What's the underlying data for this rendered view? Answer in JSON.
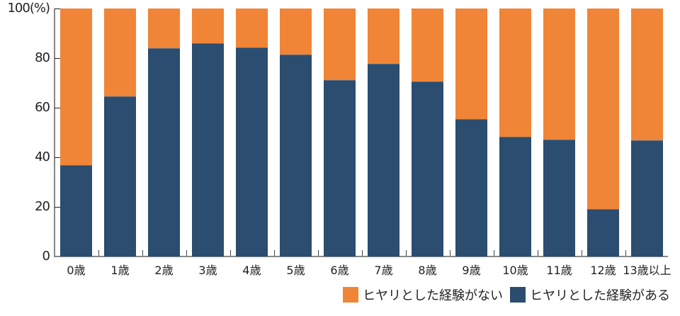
{
  "chart_data": {
    "type": "bar",
    "stacked": true,
    "percent": true,
    "title": "",
    "xlabel": "",
    "ylabel": "(%)",
    "ylim": [
      0,
      100
    ],
    "yticks": [
      0,
      20,
      40,
      60,
      80,
      100
    ],
    "ytick_labels": [
      "0",
      "20",
      "40",
      "60",
      "80",
      "100(%)"
    ],
    "grid": false,
    "legend_position": "bottom-right",
    "categories": [
      "0歳",
      "1歳",
      "2歳",
      "3歳",
      "4歳",
      "5歳",
      "6歳",
      "7歳",
      "8歳",
      "9歳",
      "10歳",
      "11歳",
      "12歳",
      "13歳以上"
    ],
    "series": [
      {
        "name": "ヒヤリとした経験がある",
        "color": "#2b4d6f",
        "values": [
          36.7,
          64.4,
          83.7,
          85.6,
          83.9,
          81.1,
          70.8,
          77.4,
          70.2,
          55.2,
          48.0,
          47.0,
          18.9,
          46.5
        ]
      },
      {
        "name": "ヒヤリとした経験がない",
        "color": "#f08537",
        "values": [
          63.3,
          35.6,
          16.3,
          14.4,
          16.1,
          18.9,
          29.2,
          22.6,
          29.8,
          44.8,
          52.0,
          53.0,
          81.1,
          53.5
        ]
      }
    ]
  },
  "legend": {
    "items": [
      {
        "label": "ヒヤリとした経験がない",
        "color": "#f08537"
      },
      {
        "label": "ヒヤリとした経験がある",
        "color": "#2b4d6f"
      }
    ]
  }
}
